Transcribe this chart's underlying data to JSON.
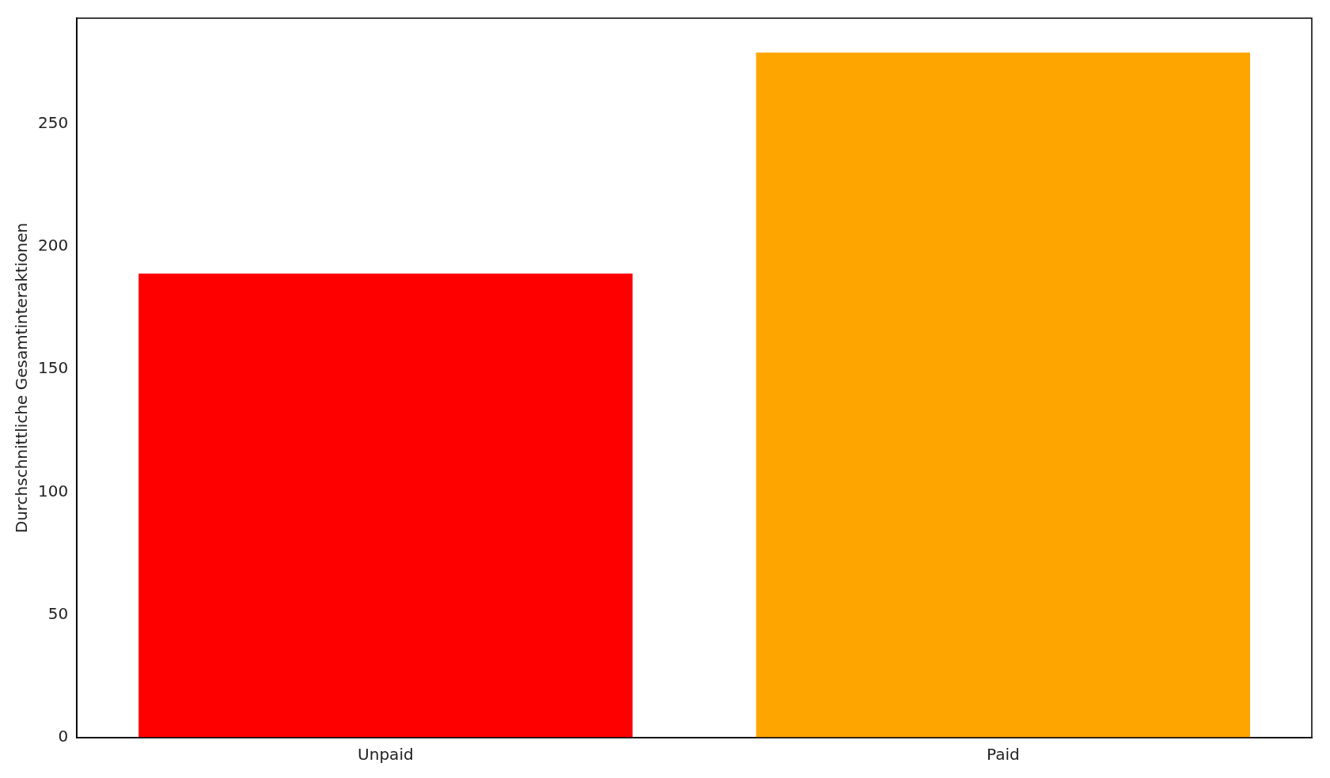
{
  "chart_data": {
    "type": "bar",
    "ylabel": "Durchschnittliche Gesamtinteraktionen",
    "categories": [
      "Unpaid",
      "Paid"
    ],
    "values": [
      189,
      279
    ],
    "colors": [
      "#ff0000",
      "#ffa500"
    ],
    "ylim": [
      0,
      293
    ],
    "yticks": [
      0,
      50,
      100,
      150,
      200,
      250
    ],
    "grid": false,
    "legend": false
  }
}
